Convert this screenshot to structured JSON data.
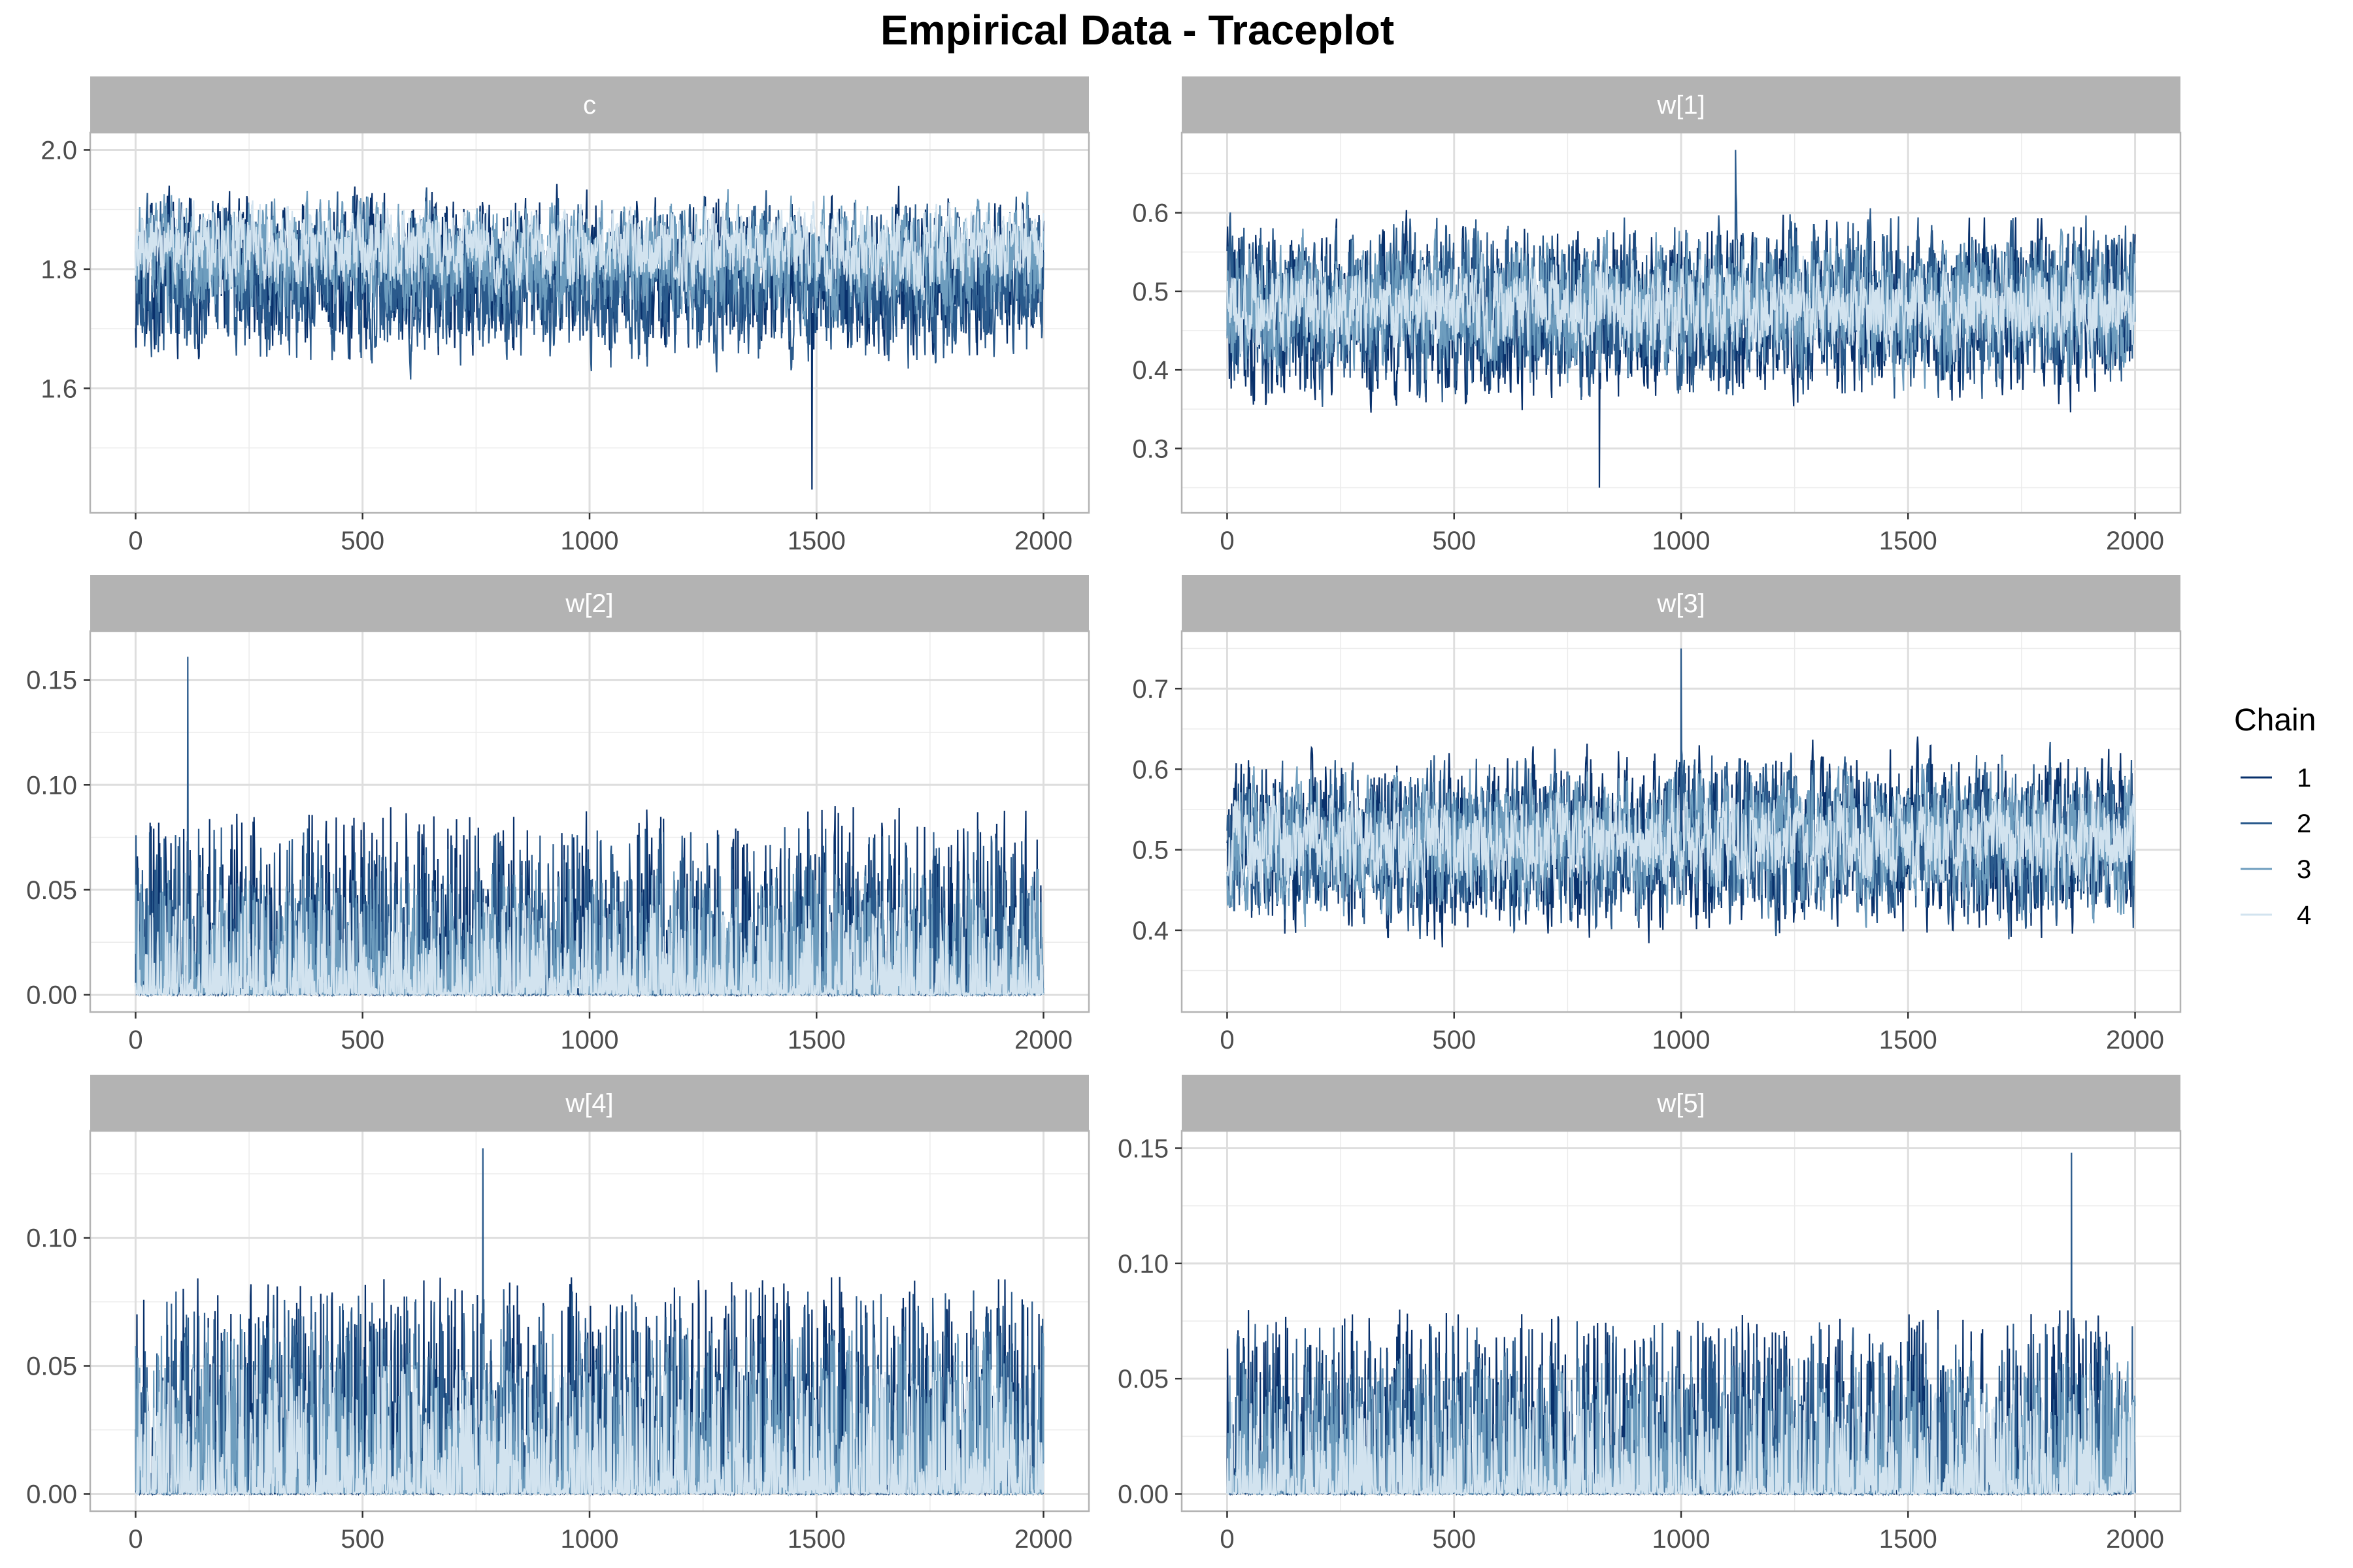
{
  "title": "Empirical Data - Traceplot",
  "legend": {
    "title": "Chain",
    "entries": [
      "1",
      "2",
      "3",
      "4"
    ],
    "colors": [
      "#08306B",
      "#2A5A8C",
      "#6E9DBE",
      "#D2E3EF"
    ],
    "placement": "right"
  },
  "chart_data": [
    {
      "type": "line",
      "title": "c",
      "x_range": [
        0,
        2000
      ],
      "ylim": [
        1.42,
        2.0
      ],
      "x_ticks": [
        0,
        500,
        1000,
        1500,
        2000
      ],
      "y_ticks": [
        1.6,
        1.8,
        2.0
      ],
      "y_tick_labels": [
        "1.6",
        "1.8",
        "2.0"
      ],
      "chain_ranges": [
        [
          1.62,
          1.97
        ],
        [
          1.6,
          1.96
        ],
        [
          1.68,
          1.95
        ],
        [
          1.74,
          1.93
        ]
      ],
      "notable_minimum": {
        "x": 1490,
        "y": 1.43
      },
      "grid": true
    },
    {
      "type": "line",
      "title": "w[1]",
      "x_range": [
        0,
        2000
      ],
      "ylim": [
        0.24,
        0.68
      ],
      "x_ticks": [
        0,
        500,
        1000,
        1500,
        2000
      ],
      "y_ticks": [
        0.3,
        0.4,
        0.5,
        0.6
      ],
      "y_tick_labels": [
        "0.3",
        "0.4",
        "0.5",
        "0.6"
      ],
      "chain_ranges": [
        [
          0.32,
          0.62
        ],
        [
          0.33,
          0.63
        ],
        [
          0.36,
          0.6
        ],
        [
          0.4,
          0.56
        ]
      ],
      "notable_maximum": {
        "x": 1120,
        "y": 0.68
      },
      "notable_minimum": {
        "x": 820,
        "y": 0.25
      },
      "grid": true
    },
    {
      "type": "line",
      "title": "w[2]",
      "x_range": [
        0,
        2000
      ],
      "ylim": [
        0.0,
        0.165
      ],
      "x_ticks": [
        0,
        500,
        1000,
        1500,
        2000
      ],
      "y_ticks": [
        0.0,
        0.05,
        0.1,
        0.15
      ],
      "y_tick_labels": [
        "0.00",
        "0.05",
        "0.10",
        "0.15"
      ],
      "chain_ranges": [
        [
          0.0,
          0.09
        ],
        [
          0.0,
          0.08
        ],
        [
          0.0,
          0.06
        ],
        [
          0.0,
          0.045
        ]
      ],
      "notable_maximum": {
        "x": 115,
        "y": 0.161
      },
      "grid": true
    },
    {
      "type": "line",
      "title": "w[3]",
      "x_range": [
        0,
        2000
      ],
      "ylim": [
        0.32,
        0.75
      ],
      "x_ticks": [
        0,
        500,
        1000,
        1500,
        2000
      ],
      "y_ticks": [
        0.4,
        0.5,
        0.6,
        0.7
      ],
      "y_tick_labels": [
        "0.4",
        "0.5",
        "0.6",
        "0.7"
      ],
      "chain_ranges": [
        [
          0.36,
          0.66
        ],
        [
          0.37,
          0.65
        ],
        [
          0.39,
          0.63
        ],
        [
          0.43,
          0.59
        ]
      ],
      "notable_maximum": {
        "x": 1000,
        "y": 0.75
      },
      "grid": true
    },
    {
      "type": "line",
      "title": "w[4]",
      "x_range": [
        0,
        2000
      ],
      "ylim": [
        0.0,
        0.135
      ],
      "x_ticks": [
        0,
        500,
        1000,
        1500,
        2000
      ],
      "y_ticks": [
        0.0,
        0.05,
        0.1
      ],
      "y_tick_labels": [
        "0.00",
        "0.05",
        "0.10"
      ],
      "chain_ranges": [
        [
          0.0,
          0.085
        ],
        [
          0.0,
          0.08
        ],
        [
          0.0,
          0.065
        ],
        [
          0.0,
          0.05
        ]
      ],
      "notable_maximum": {
        "x": 765,
        "y": 0.135
      },
      "grid": true
    },
    {
      "type": "line",
      "title": "w[5]",
      "x_range": [
        0,
        2000
      ],
      "ylim": [
        0.0,
        0.15
      ],
      "x_ticks": [
        0,
        500,
        1000,
        1500,
        2000
      ],
      "y_ticks": [
        0.0,
        0.05,
        0.1,
        0.15
      ],
      "y_tick_labels": [
        "0.00",
        "0.05",
        "0.10",
        "0.15"
      ],
      "chain_ranges": [
        [
          0.0,
          0.08
        ],
        [
          0.0,
          0.075
        ],
        [
          0.0,
          0.06
        ],
        [
          0.0,
          0.045
        ]
      ],
      "notable_maximum": {
        "x": 1860,
        "y": 0.148
      },
      "grid": true
    }
  ]
}
